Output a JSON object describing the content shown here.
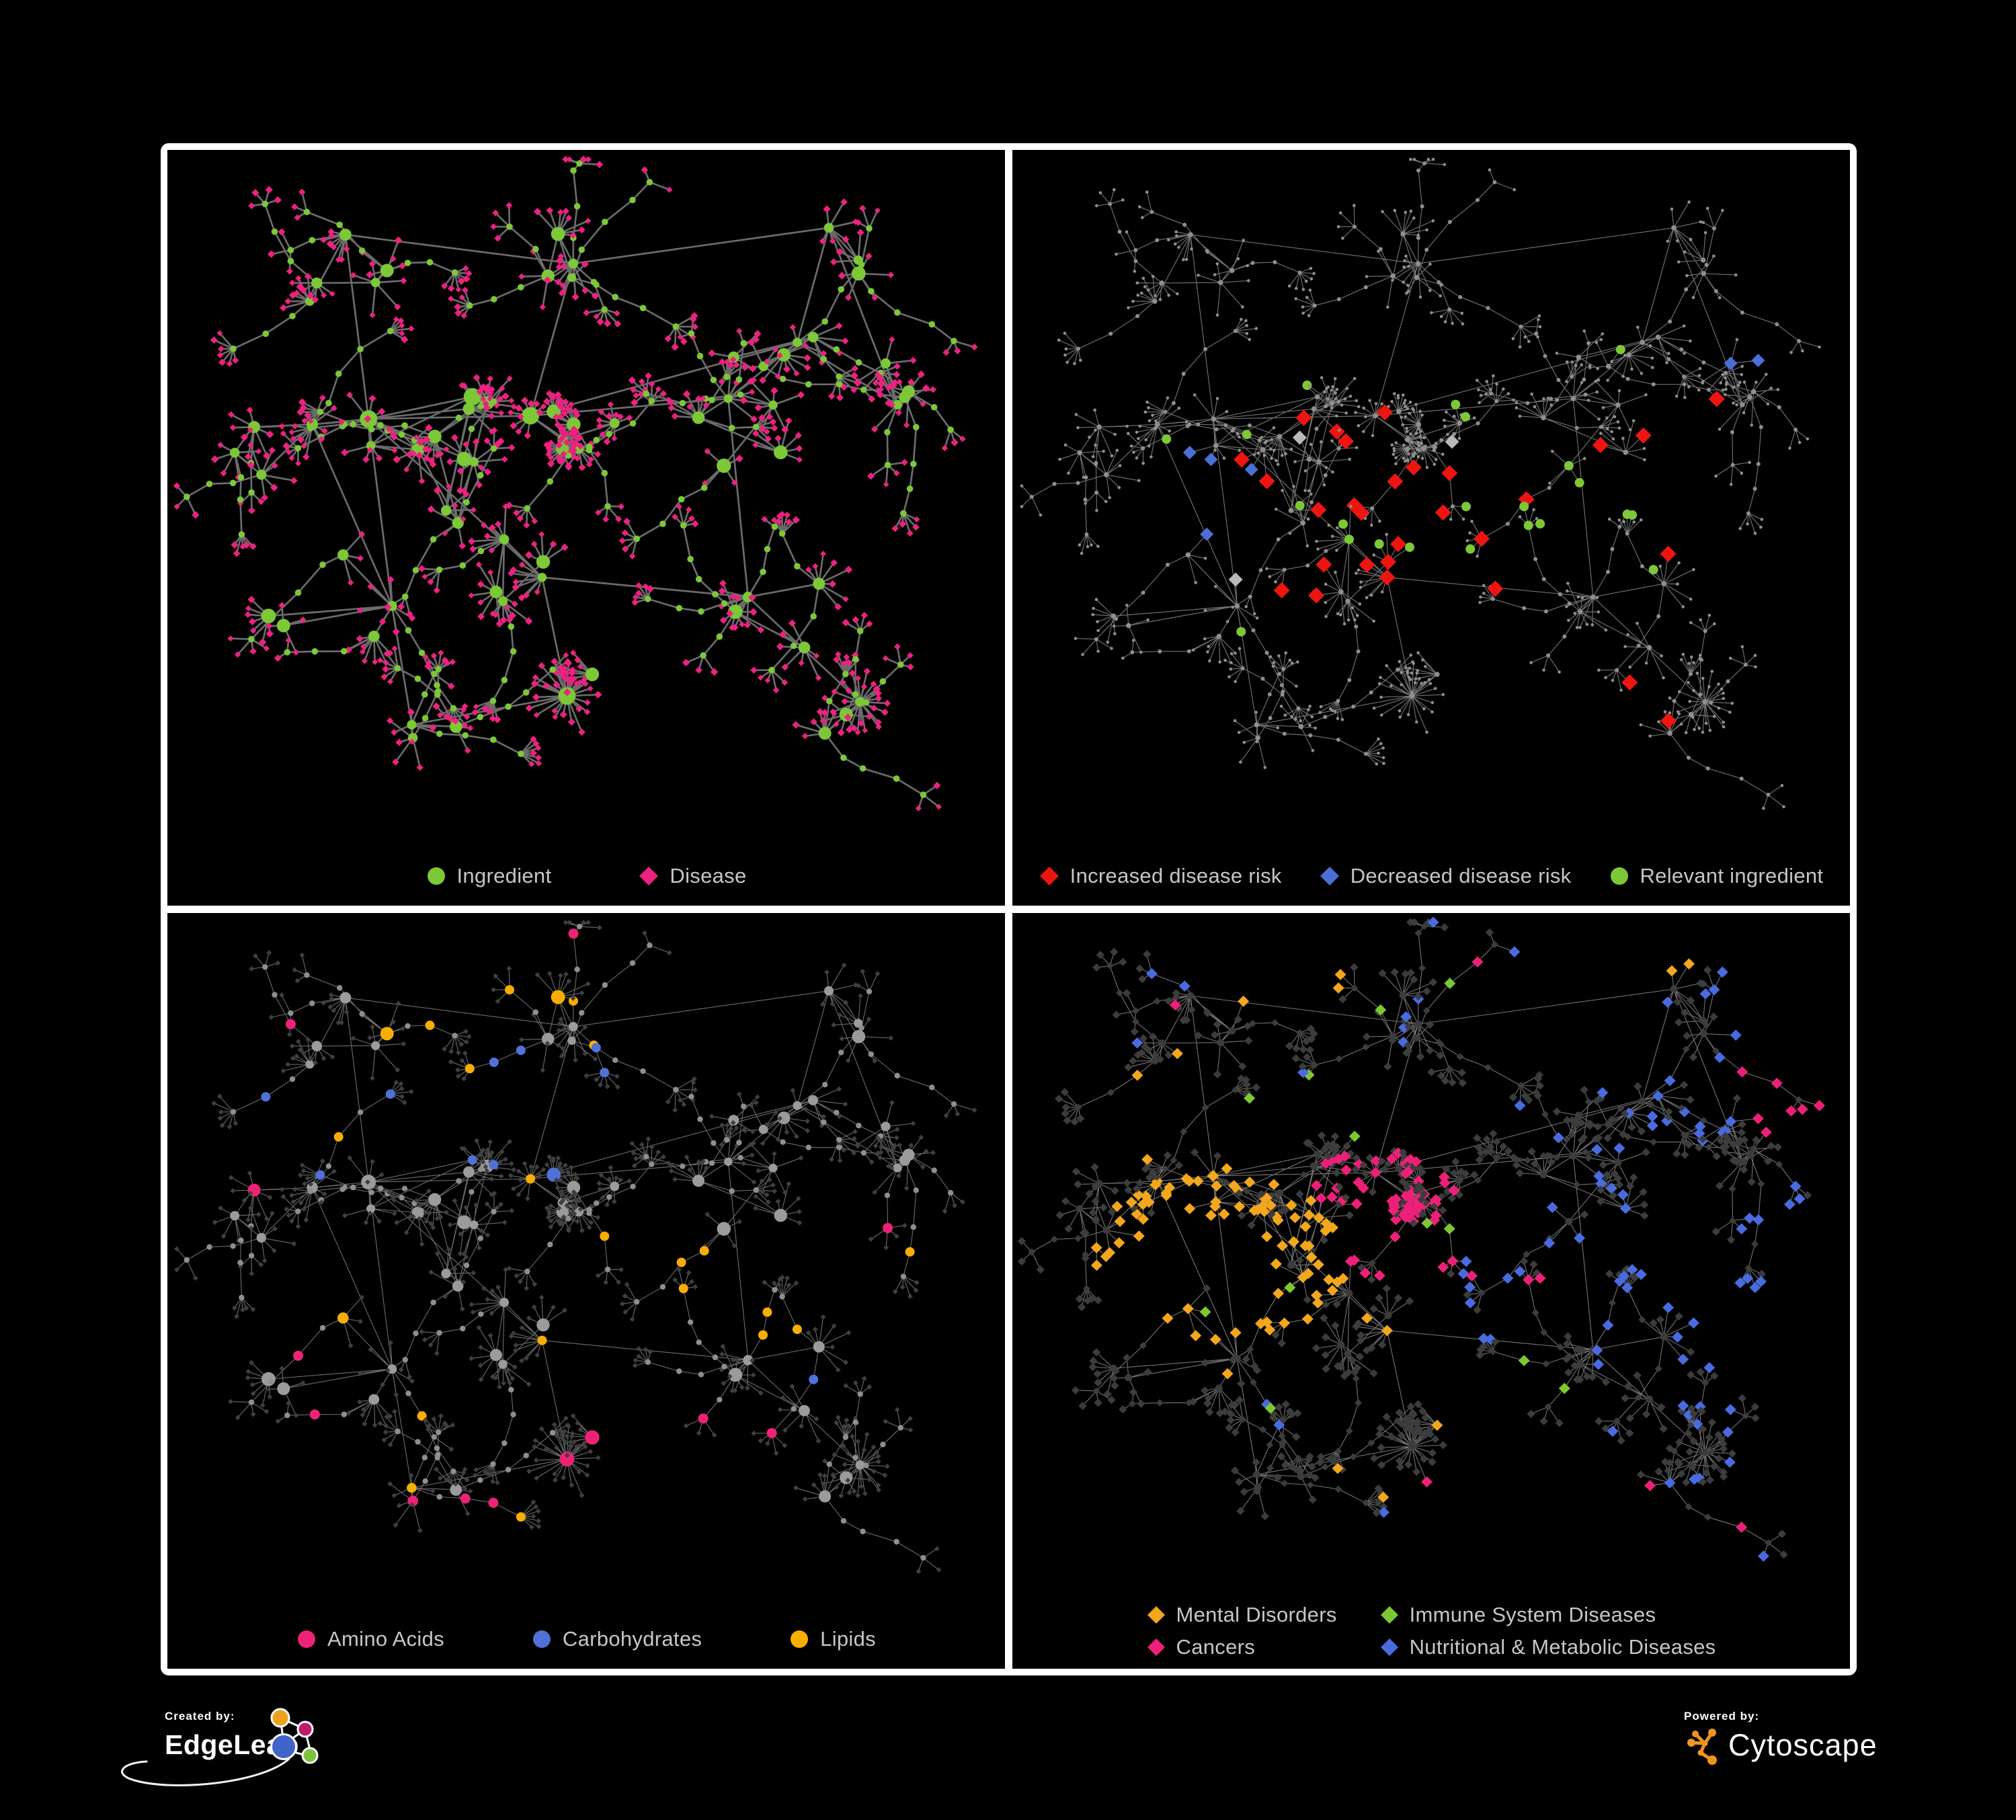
{
  "panels": [
    {
      "legend": [
        {
          "label": "Ingredient",
          "color": "#7cc837",
          "shape": "circle"
        },
        {
          "label": "Disease",
          "color": "#ec2180",
          "shape": "diamond"
        }
      ],
      "edge_color": "#6b6b6b"
    },
    {
      "legend": [
        {
          "label": "Increased disease risk",
          "color": "#ee1511",
          "shape": "diamond"
        },
        {
          "label": "Decreased disease risk",
          "color": "#4b6fd6",
          "shape": "diamond"
        },
        {
          "label": "Relevant ingredient",
          "color": "#7cc837",
          "shape": "circle"
        }
      ],
      "edge_color": "#7d7d7d",
      "node_color": "#8f8f8f",
      "gray_highlight_color": "#b9b9b9"
    },
    {
      "legend": [
        {
          "label": "Amino Acids",
          "color": "#ee2277",
          "shape": "circle"
        },
        {
          "label": "Carbohydrates",
          "color": "#5071d9",
          "shape": "circle"
        },
        {
          "label": "Lipids",
          "color": "#f8ae00",
          "shape": "circle"
        }
      ],
      "edge_color": "#8a8a8a",
      "node_color": "#9b9b9b",
      "mid_color": "#8f8f8f",
      "leaf_color": "#3f3f3f"
    },
    {
      "legend": [
        {
          "label": "Mental Disorders",
          "color": "#f2a71c",
          "shape": "diamond"
        },
        {
          "label": "Immune System Diseases",
          "color": "#7dc832",
          "shape": "diamond"
        },
        {
          "label": "Cancers",
          "color": "#ed2079",
          "shape": "diamond"
        },
        {
          "label": "Nutritional & Metabolic Diseases",
          "color": "#4a6be0",
          "shape": "diamond"
        }
      ],
      "edge_color": "#8a8a8a",
      "node_color": "#3c3c3c"
    }
  ],
  "footer": {
    "created_by": "Created by:",
    "brand": "EdgeLeap",
    "powered_by": "Powered by:",
    "engine": "Cytoscape",
    "cytoscape_color": "#ef9420",
    "edgeleap_colors": {
      "orange": "#eca21d",
      "magenta": "#c01a6e",
      "blue": "#4064c8",
      "green": "#7cc23e"
    }
  },
  "colors": {
    "background": "#000000",
    "panel_border": "#ffffff",
    "legend_text": "#c6c6c6"
  }
}
